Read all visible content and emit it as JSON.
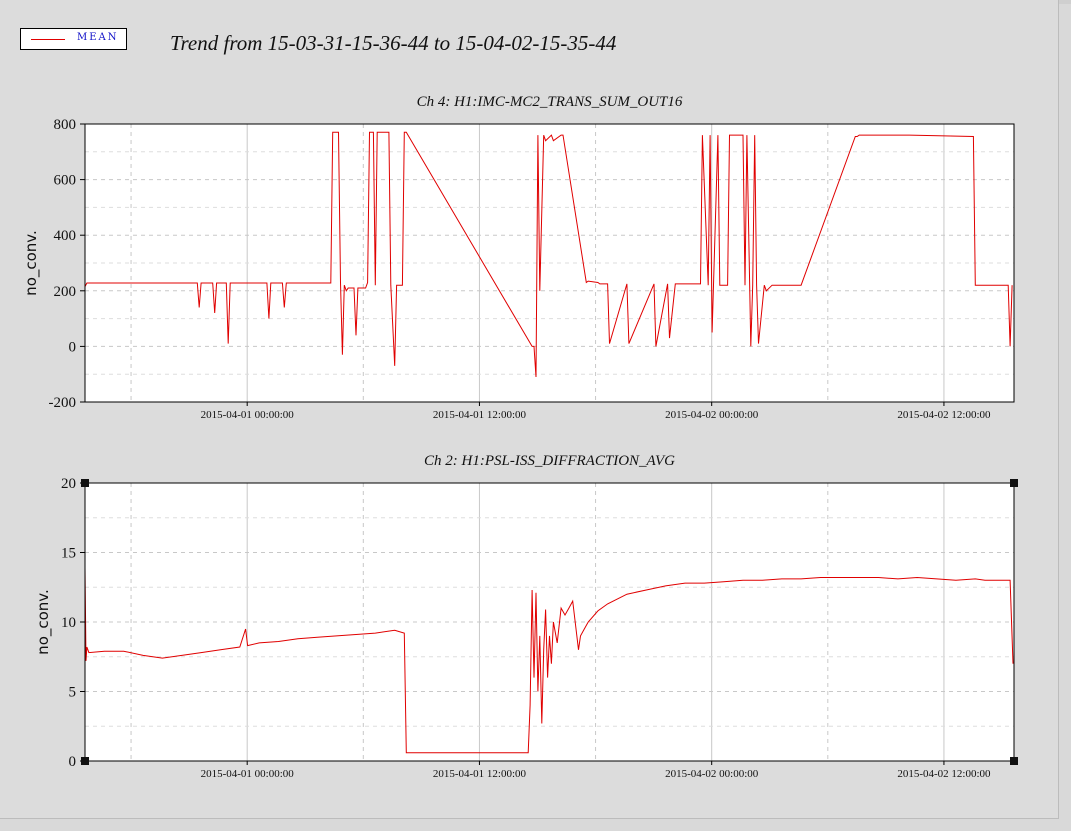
{
  "legend": {
    "label": "MEAN",
    "color": "#e00000"
  },
  "title": "Trend from 15-03-31-15-36-44 to 15-04-02-15-35-44",
  "chart_data": [
    {
      "type": "line",
      "title": "Ch 4: H1:IMC-MC2_TRANS_SUM_OUT16",
      "ylabel": "no_conv.",
      "xlabel": "",
      "ylim": [
        -200,
        800
      ],
      "yticks": [
        -200,
        0,
        200,
        400,
        600,
        800
      ],
      "x_start_hours": 0,
      "x_end_hours": 48,
      "xticks": [
        {
          "hours": 8.38,
          "label": "2015-04-01 00:00:00"
        },
        {
          "hours": 20.38,
          "label": "2015-04-01 12:00:00"
        },
        {
          "hours": 32.38,
          "label": "2015-04-02 00:00:00"
        },
        {
          "hours": 44.38,
          "label": "2015-04-02 12:00:00"
        }
      ],
      "grid": true,
      "series": [
        {
          "name": "MEAN",
          "color": "#e00000",
          "x": [
            0,
            0.1,
            0.2,
            5.8,
            5.9,
            6.0,
            6.6,
            6.7,
            6.8,
            7.3,
            7.4,
            7.5,
            9.4,
            9.5,
            9.6,
            10.2,
            10.3,
            10.4,
            12.7,
            12.8,
            13.1,
            13.2,
            13.3,
            13.4,
            13.5,
            13.6,
            13.9,
            14.0,
            14.1,
            14.5,
            14.6,
            14.7,
            14.9,
            15.0,
            15.1,
            15.7,
            15.8,
            16.0,
            16.1,
            16.4,
            16.5,
            16.6,
            23.1,
            23.2,
            23.3,
            23.4,
            23.5,
            23.7,
            23.8,
            24.1,
            24.2,
            24.6,
            24.7,
            25.9,
            26.0,
            26.5,
            26.6,
            27.0,
            27.1,
            28.0,
            28.1,
            29.4,
            29.5,
            30.1,
            30.2,
            30.5,
            30.6,
            31.8,
            31.9,
            32.2,
            32.3,
            32.4,
            32.7,
            32.8,
            33.2,
            33.3,
            34.0,
            34.1,
            34.2,
            34.4,
            34.5,
            34.6,
            34.7,
            34.8,
            35.1,
            35.2,
            35.5,
            35.6,
            36.3,
            36.4,
            36.9,
            37.0,
            39.8,
            39.9,
            40.0,
            42.6,
            45.9,
            46.0,
            46.1,
            47.7,
            47.8,
            47.9
          ],
          "y": [
            215,
            228,
            228,
            228,
            140,
            228,
            228,
            120,
            228,
            228,
            10,
            228,
            228,
            100,
            228,
            228,
            140,
            228,
            228,
            770,
            770,
            230,
            -30,
            220,
            200,
            210,
            210,
            40,
            210,
            210,
            230,
            770,
            770,
            220,
            770,
            770,
            220,
            -70,
            220,
            220,
            770,
            770,
            0,
            0,
            -110,
            760,
            200,
            760,
            740,
            760,
            740,
            760,
            760,
            230,
            235,
            230,
            225,
            225,
            10,
            225,
            10,
            225,
            0,
            225,
            30,
            225,
            225,
            225,
            760,
            220,
            760,
            50,
            760,
            220,
            220,
            760,
            760,
            220,
            760,
            0,
            220,
            760,
            220,
            10,
            220,
            200,
            220,
            220,
            220,
            220,
            220,
            220,
            755,
            755,
            760,
            760,
            755,
            220,
            220,
            220,
            0,
            220
          ]
        }
      ]
    },
    {
      "type": "line",
      "title": "Ch 2: H1:PSL-ISS_DIFFRACTION_AVG",
      "ylabel": "no_conv.",
      "xlabel": "",
      "ylim": [
        0,
        20
      ],
      "yticks": [
        0,
        5,
        10,
        15,
        20
      ],
      "x_start_hours": 0,
      "x_end_hours": 48,
      "xticks": [
        {
          "hours": 8.38,
          "label": "2015-04-01 00:00:00"
        },
        {
          "hours": 20.38,
          "label": "2015-04-01 12:00:00"
        },
        {
          "hours": 32.38,
          "label": "2015-04-02 00:00:00"
        },
        {
          "hours": 44.38,
          "label": "2015-04-02 12:00:00"
        }
      ],
      "grid": true,
      "series": [
        {
          "name": "MEAN",
          "color": "#e00000",
          "x": [
            0,
            0.05,
            0.1,
            0.2,
            1.0,
            2.0,
            3.0,
            4.0,
            5.0,
            6.0,
            7.0,
            8.0,
            8.3,
            8.4,
            9.0,
            10.0,
            11.0,
            12.0,
            13.0,
            14.0,
            15.0,
            16.0,
            16.5,
            16.6,
            18.0,
            19.0,
            20.0,
            21.0,
            22.0,
            22.9,
            23.0,
            23.1,
            23.2,
            23.3,
            23.4,
            23.5,
            23.6,
            23.7,
            23.8,
            23.9,
            24.0,
            24.1,
            24.2,
            24.4,
            24.6,
            24.8,
            25.0,
            25.2,
            25.5,
            25.6,
            25.8,
            26.0,
            26.5,
            27.0,
            28.0,
            29.0,
            30.0,
            31.0,
            32.0,
            33.0,
            34.0,
            35.0,
            36.0,
            37.0,
            38.0,
            39.0,
            40.0,
            41.0,
            42.0,
            43.0,
            44.0,
            45.0,
            46.0,
            46.5,
            47.0,
            47.5,
            47.8,
            47.95
          ],
          "y": [
            13.9,
            7.2,
            8.2,
            7.8,
            7.9,
            7.9,
            7.6,
            7.4,
            7.6,
            7.8,
            8.0,
            8.2,
            9.5,
            8.3,
            8.5,
            8.6,
            8.8,
            8.9,
            9.0,
            9.1,
            9.2,
            9.4,
            9.2,
            0.6,
            0.6,
            0.6,
            0.6,
            0.6,
            0.6,
            0.6,
            4.0,
            12.3,
            6.0,
            12.1,
            5.0,
            9.0,
            2.7,
            8.0,
            10.9,
            6.0,
            9.0,
            7.0,
            10.0,
            8.5,
            11.0,
            10.5,
            11.0,
            11.5,
            8.0,
            9.0,
            9.5,
            10.0,
            10.8,
            11.3,
            12.0,
            12.3,
            12.6,
            12.8,
            12.8,
            12.9,
            13.0,
            13.0,
            13.1,
            13.1,
            13.2,
            13.2,
            13.2,
            13.2,
            13.1,
            13.2,
            13.1,
            13.0,
            13.1,
            13.0,
            13.0,
            13.0,
            13.0,
            7.0
          ]
        }
      ]
    }
  ]
}
